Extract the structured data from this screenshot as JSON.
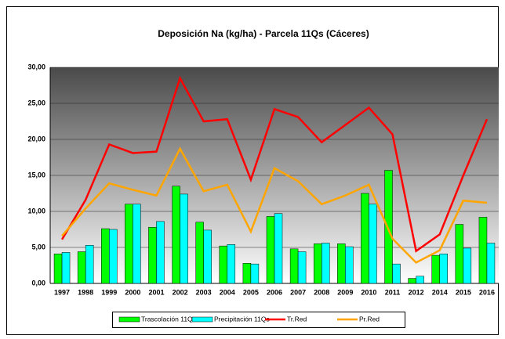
{
  "chart_data": {
    "type": "bar",
    "title": "Deposición Na (kg/ha) - Parcela 11Qs (Cáceres)",
    "categories": [
      "1997",
      "1998",
      "1999",
      "2000",
      "2001",
      "2002",
      "2003",
      "2004",
      "2005",
      "2006",
      "2007",
      "2008",
      "2009",
      "2010",
      "2011",
      "2012",
      "2014",
      "2015",
      "2016"
    ],
    "series": [
      {
        "name": "Trascolación  11Qs",
        "type": "bar",
        "color": "#00ff00",
        "values": [
          4.1,
          4.4,
          7.6,
          11.0,
          7.8,
          13.5,
          8.5,
          5.2,
          2.8,
          9.3,
          4.8,
          5.5,
          5.5,
          12.5,
          15.7,
          0.7,
          3.9,
          8.2,
          9.2
        ]
      },
      {
        "name": "Precipitación 11Qs",
        "type": "bar",
        "color": "#00ffff",
        "values": [
          4.3,
          5.3,
          7.5,
          11.0,
          8.6,
          12.4,
          7.4,
          5.4,
          2.7,
          9.7,
          4.4,
          5.6,
          5.1,
          11.0,
          2.7,
          1.0,
          4.1,
          4.9,
          5.6
        ]
      },
      {
        "name": "Tr.Red",
        "type": "line",
        "color": "#ff0000",
        "values": [
          6.1,
          11.6,
          19.3,
          18.1,
          18.3,
          28.5,
          22.5,
          22.8,
          14.4,
          24.2,
          23.1,
          19.6,
          22.0,
          24.4,
          20.7,
          4.5,
          6.8,
          15.0,
          22.8
        ]
      },
      {
        "name": "Pr.Red",
        "type": "line",
        "color": "#ffa500",
        "values": [
          6.6,
          10.4,
          13.9,
          13.0,
          12.2,
          18.7,
          12.8,
          13.7,
          7.2,
          16.0,
          14.2,
          11.0,
          12.2,
          13.7,
          6.2,
          2.9,
          4.6,
          11.5,
          11.2
        ]
      }
    ],
    "ylim": [
      0,
      30
    ],
    "yticks": [
      {
        "value": 0,
        "label": "0,00"
      },
      {
        "value": 5,
        "label": "5,00"
      },
      {
        "value": 10,
        "label": "10,00"
      },
      {
        "value": 15,
        "label": "15,00"
      },
      {
        "value": 20,
        "label": "20,00"
      },
      {
        "value": 25,
        "label": "25,00"
      },
      {
        "value": 30,
        "label": "30,00"
      }
    ],
    "grid": true,
    "legend": "bottom"
  }
}
